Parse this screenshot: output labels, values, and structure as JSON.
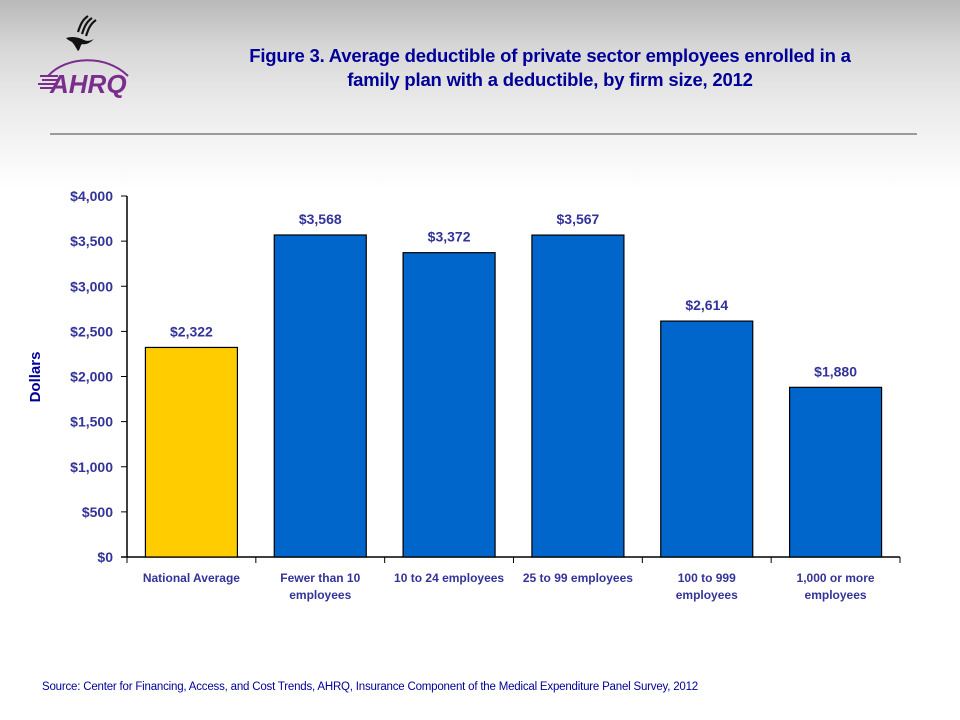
{
  "header": {
    "logo_text": "AHRQ",
    "logo_icon": "hhs-eagle-icon",
    "title_line1": "Figure 3. Average deductible of private sector employees enrolled in a",
    "title_line2": "family plan with a deductible, by firm size, 2012"
  },
  "colors": {
    "title": "#000099",
    "axis_text": "#333399",
    "highlight_bar": "#FFCC00",
    "bar": "#0066CC",
    "logo": "#7B2D8E"
  },
  "chart_data": {
    "type": "bar",
    "title": "Figure 3. Average deductible of private sector employees enrolled in a family plan with a deductible, by firm size, 2012",
    "xlabel": "",
    "ylabel": "Dollars",
    "ylim": [
      0,
      4000
    ],
    "yticks": [
      0,
      500,
      1000,
      1500,
      2000,
      2500,
      3000,
      3500,
      4000
    ],
    "ytick_labels": [
      "$0",
      "$500",
      "$1,000",
      "$1,500",
      "$2,000",
      "$2,500",
      "$3,000",
      "$3,500",
      "$4,000"
    ],
    "grid": false,
    "categories": [
      [
        "National Average"
      ],
      [
        "Fewer than 10",
        "employees"
      ],
      [
        "10 to 24 employees"
      ],
      [
        "25 to 99 employees"
      ],
      [
        "100 to 999",
        "employees"
      ],
      [
        "1,000 or more",
        "employees"
      ]
    ],
    "values": [
      2322,
      3568,
      3372,
      3567,
      2614,
      1880
    ],
    "data_labels": [
      "$2,322",
      "$3,568",
      "$3,372",
      "$3,567",
      "$2,614",
      "$1,880"
    ],
    "highlight_index": 0
  },
  "footer": {
    "source": "Source: Center for Financing, Access, and Cost Trends, AHRQ, Insurance Component of the Medical Expenditure Panel Survey,  2012"
  }
}
